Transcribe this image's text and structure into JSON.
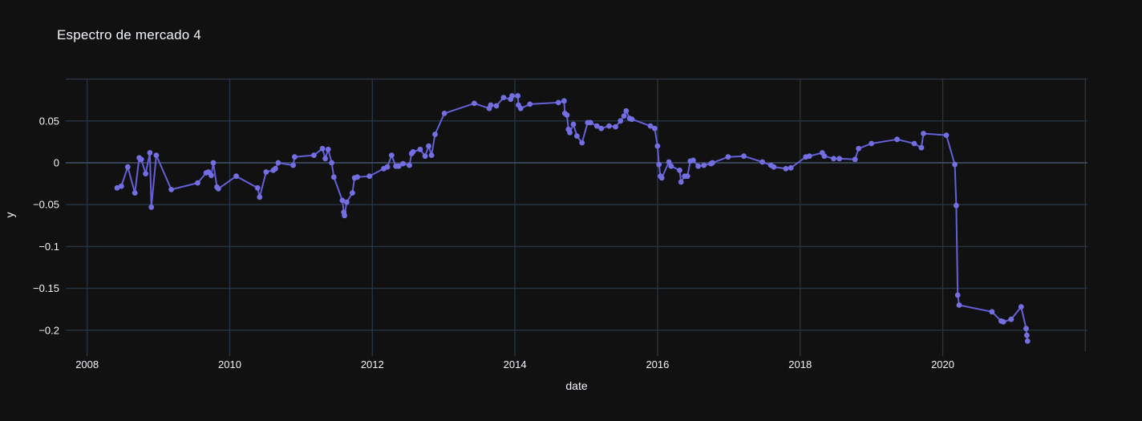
{
  "page": {
    "background": "#111111"
  },
  "header": {
    "title": "Espectro de mercado 4"
  },
  "colors": {
    "background": "#111111",
    "grid": "#283442",
    "zero_line": "#3d4a5c",
    "text": "#f2f5fa",
    "accent_line": "#655fd8",
    "accent_marker": "#736fe3"
  },
  "chart_data": {
    "type": "line",
    "mode": "lines+markers",
    "title": "Espectro de mercado 4",
    "xlabel": "date",
    "ylabel": "y",
    "grid": true,
    "legend": false,
    "x_axis": {
      "lim": [
        2007.7,
        2022.03
      ],
      "grid_values": [
        2008,
        2010,
        2012,
        2014,
        2016,
        2018,
        2020,
        2022
      ],
      "tick_values": [
        2008,
        2010,
        2012,
        2014,
        2016,
        2018,
        2020
      ],
      "tick_labels": [
        "2008",
        "2010",
        "2012",
        "2014",
        "2016",
        "2018",
        "2020"
      ]
    },
    "y_axis": {
      "lim": [
        -0.2251,
        0.1006
      ],
      "grid_values": [
        0.1,
        0.05,
        0,
        -0.05,
        -0.1,
        -0.15,
        -0.2
      ],
      "tick_values": [
        0.05,
        0,
        -0.05,
        -0.1,
        -0.15,
        -0.2
      ],
      "tick_labels": [
        "0.05",
        "0",
        "−0.05",
        "−0.1",
        "−0.15",
        "−0.2"
      ],
      "zero_value": 0
    },
    "series": [
      {
        "name": "y",
        "line_color": "#655fd8",
        "marker_color": "#736fe3",
        "x": [
          2008.42,
          2008.48,
          2008.57,
          2008.67,
          2008.73,
          2008.76,
          2008.82,
          2008.88,
          2008.9,
          2008.97,
          2009.18,
          2009.55,
          2009.67,
          2009.7,
          2009.74,
          2009.77,
          2009.82,
          2009.84,
          2010.09,
          2010.39,
          2010.42,
          2010.51,
          2010.61,
          2010.64,
          2010.68,
          2010.89,
          2010.91,
          2011.18,
          2011.3,
          2011.34,
          2011.38,
          2011.43,
          2011.46,
          2011.58,
          2011.6,
          2011.61,
          2011.64,
          2011.72,
          2011.75,
          2011.79,
          2011.96,
          2012.16,
          2012.21,
          2012.27,
          2012.33,
          2012.37,
          2012.43,
          2012.52,
          2012.55,
          2012.57,
          2012.67,
          2012.74,
          2012.79,
          2012.83,
          2012.88,
          2013.01,
          2013.43,
          2013.64,
          2013.66,
          2013.74,
          2013.84,
          2013.94,
          2013.96,
          2014.04,
          2014.05,
          2014.08,
          2014.21,
          2014.61,
          2014.69,
          2014.7,
          2014.73,
          2014.75,
          2014.77,
          2014.82,
          2014.87,
          2014.94,
          2015.02,
          2015.06,
          2015.15,
          2015.21,
          2015.32,
          2015.41,
          2015.48,
          2015.53,
          2015.56,
          2015.61,
          2015.64,
          2015.9,
          2015.96,
          2016.0,
          2016.02,
          2016.04,
          2016.06,
          2016.16,
          2016.19,
          2016.31,
          2016.33,
          2016.38,
          2016.42,
          2016.46,
          2016.5,
          2016.57,
          2016.65,
          2016.75,
          2016.77,
          2016.99,
          2017.21,
          2017.47,
          2017.59,
          2017.63,
          2017.8,
          2017.87,
          2018.08,
          2018.13,
          2018.31,
          2018.34,
          2018.47,
          2018.55,
          2018.77,
          2018.82,
          2019.0,
          2019.36,
          2019.6,
          2019.7,
          2019.73,
          2020.05,
          2020.17,
          2020.19,
          2020.21,
          2020.23,
          2020.69,
          2020.82,
          2020.85,
          2020.96,
          2021.1,
          2021.17,
          2021.18,
          2021.19
        ],
        "y": [
          -0.03,
          -0.028,
          -0.005,
          -0.036,
          0.006,
          0.004,
          -0.013,
          0.012,
          -0.053,
          0.009,
          -0.032,
          -0.024,
          -0.012,
          -0.011,
          -0.015,
          0.0,
          -0.029,
          -0.031,
          -0.016,
          -0.03,
          -0.041,
          -0.011,
          -0.009,
          -0.007,
          0.0,
          -0.003,
          0.007,
          0.009,
          0.017,
          0.005,
          0.016,
          0.0,
          -0.017,
          -0.045,
          -0.059,
          -0.063,
          -0.047,
          -0.036,
          -0.018,
          -0.017,
          -0.016,
          -0.007,
          -0.005,
          0.009,
          -0.004,
          -0.004,
          -0.001,
          -0.003,
          0.011,
          0.013,
          0.016,
          0.008,
          0.02,
          0.009,
          0.034,
          0.059,
          0.071,
          0.065,
          0.069,
          0.068,
          0.078,
          0.076,
          0.08,
          0.08,
          0.069,
          0.065,
          0.07,
          0.072,
          0.074,
          0.059,
          0.057,
          0.04,
          0.036,
          0.046,
          0.032,
          0.024,
          0.048,
          0.048,
          0.044,
          0.041,
          0.044,
          0.043,
          0.05,
          0.056,
          0.062,
          0.053,
          0.052,
          0.044,
          0.041,
          0.02,
          -0.002,
          -0.016,
          -0.018,
          0.001,
          -0.004,
          -0.009,
          -0.023,
          -0.016,
          -0.016,
          0.002,
          0.003,
          -0.004,
          -0.003,
          -0.001,
          0.0,
          0.007,
          0.008,
          0.001,
          -0.003,
          -0.005,
          -0.007,
          -0.006,
          0.007,
          0.008,
          0.012,
          0.008,
          0.005,
          0.005,
          0.004,
          0.017,
          0.023,
          0.028,
          0.023,
          0.018,
          0.035,
          0.033,
          -0.002,
          -0.051,
          -0.158,
          -0.17,
          -0.178,
          -0.189,
          -0.19,
          -0.187,
          -0.172,
          -0.198,
          -0.206,
          -0.213
        ]
      }
    ]
  }
}
